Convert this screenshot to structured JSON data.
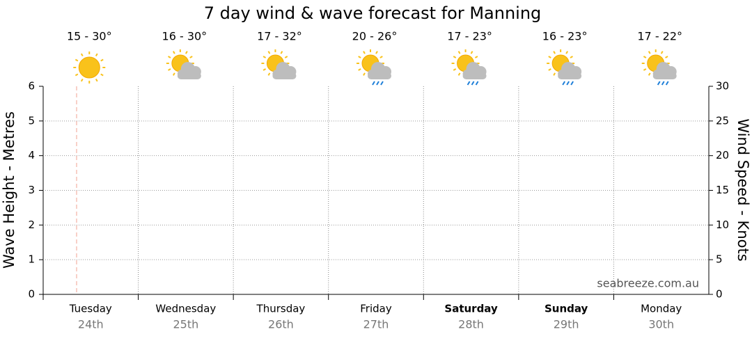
{
  "chart_data": {
    "type": "line",
    "title": "7 day wind & wave forecast for Manning",
    "categories": [
      "Tuesday",
      "Wednesday",
      "Thursday",
      "Friday",
      "Saturday",
      "Sunday",
      "Monday"
    ],
    "dates": [
      "24th",
      "25th",
      "26th",
      "27th",
      "28th",
      "29th",
      "30th"
    ],
    "temperatures": [
      "15 - 30°",
      "16 - 30°",
      "17 - 32°",
      "20 - 26°",
      "17 - 23°",
      "16 - 23°",
      "17 - 22°"
    ],
    "ylabel": "Wave Height - Metres",
    "y2label": "Wind Speed - Knots",
    "ylim": [
      0,
      6
    ],
    "yticks": [
      0,
      1,
      2,
      3,
      4,
      5,
      6
    ],
    "y2lim": [
      0,
      30
    ],
    "y2ticks": [
      0,
      5,
      10,
      15,
      20,
      25,
      30
    ],
    "grid": true,
    "series": [],
    "watermark": "seabreeze.com.au"
  }
}
